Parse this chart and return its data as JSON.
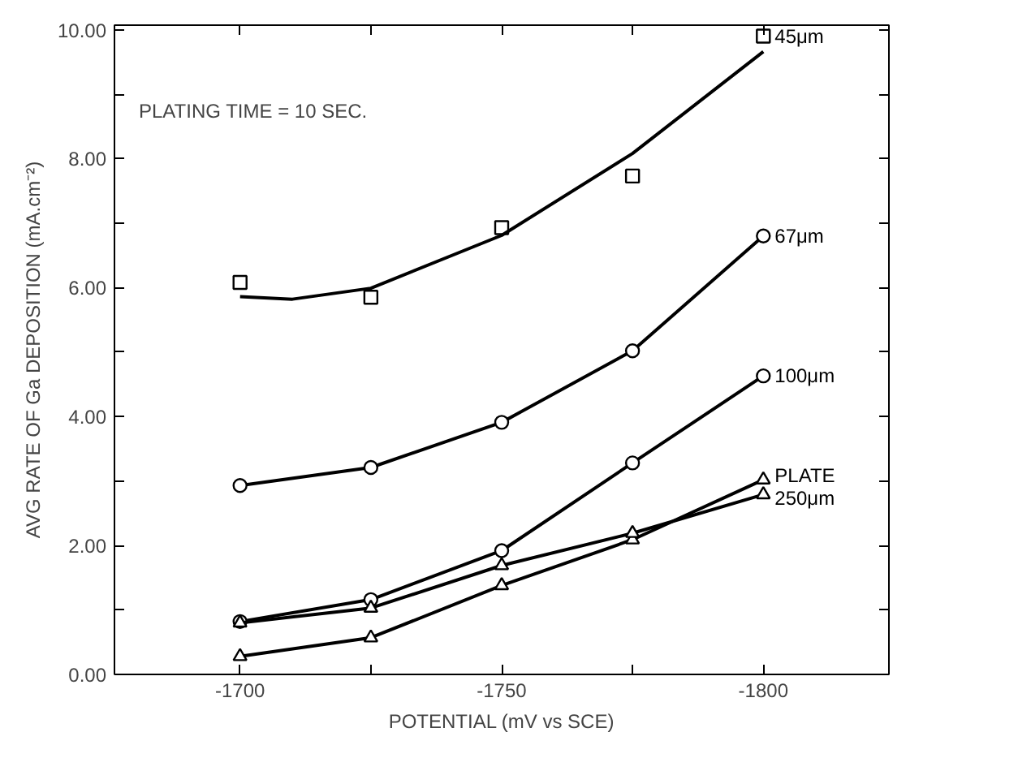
{
  "chart_data": {
    "type": "line",
    "xlabel": "POTENTIAL (mV vs SCE)",
    "ylabel": "AVG RATE OF Ga DEPOSITION (mA.cm⁻²)",
    "annotations": [
      "PLATING TIME = 10 SEC."
    ],
    "x": [
      -1700,
      -1725,
      -1750,
      -1775,
      -1800
    ],
    "xlim": [
      -1676,
      -1824
    ],
    "xticks": [
      -1700,
      {
        "value": -1725,
        "label": null
      },
      -1750,
      {
        "value": -1775,
        "label": null
      },
      -1800
    ],
    "ylim": [
      0,
      10.07
    ],
    "yticks": [
      {
        "value": 0,
        "label": "0.00"
      },
      {
        "value": 1,
        "label": null
      },
      {
        "value": 2,
        "label": "2.00"
      },
      {
        "value": 3,
        "label": null
      },
      {
        "value": 4,
        "label": "4.00"
      },
      {
        "value": 5,
        "label": null
      },
      {
        "value": 6,
        "label": "6.00"
      },
      {
        "value": 7,
        "label": null
      },
      {
        "value": 8,
        "label": "8.00"
      },
      {
        "value": 9,
        "label": null
      },
      {
        "value": 10,
        "label": "10.00"
      }
    ],
    "grid": false,
    "line_style": "solid",
    "series": [
      {
        "name": "45μm",
        "type": "scatter",
        "marker": "square",
        "color": "#000000",
        "values": [
          6.08,
          5.85,
          6.93,
          7.73,
          9.9
        ]
      },
      {
        "marker": "none",
        "color": "#000000",
        "x": [
          -1700,
          -1710,
          -1725,
          -1750,
          -1775,
          -1800
        ],
        "values": [
          5.86,
          5.82,
          5.99,
          6.81,
          8.08,
          9.66
        ]
      },
      {
        "name": "67μm",
        "marker": "circle",
        "color": "#000000",
        "values": [
          2.93,
          3.21,
          3.91,
          5.02,
          6.8
        ]
      },
      {
        "name": "100μm",
        "marker": "circle",
        "color": "#000000",
        "values": [
          0.82,
          1.16,
          1.92,
          3.28,
          4.63
        ]
      },
      {
        "name": "PLATE",
        "marker": "triangle",
        "color": "#000000",
        "values": [
          0.28,
          0.57,
          1.38,
          2.09,
          3.02
        ]
      },
      {
        "name": "250μm",
        "marker": "triangle",
        "color": "#000000",
        "values": [
          0.8,
          1.03,
          1.69,
          2.19,
          2.79
        ]
      }
    ]
  }
}
